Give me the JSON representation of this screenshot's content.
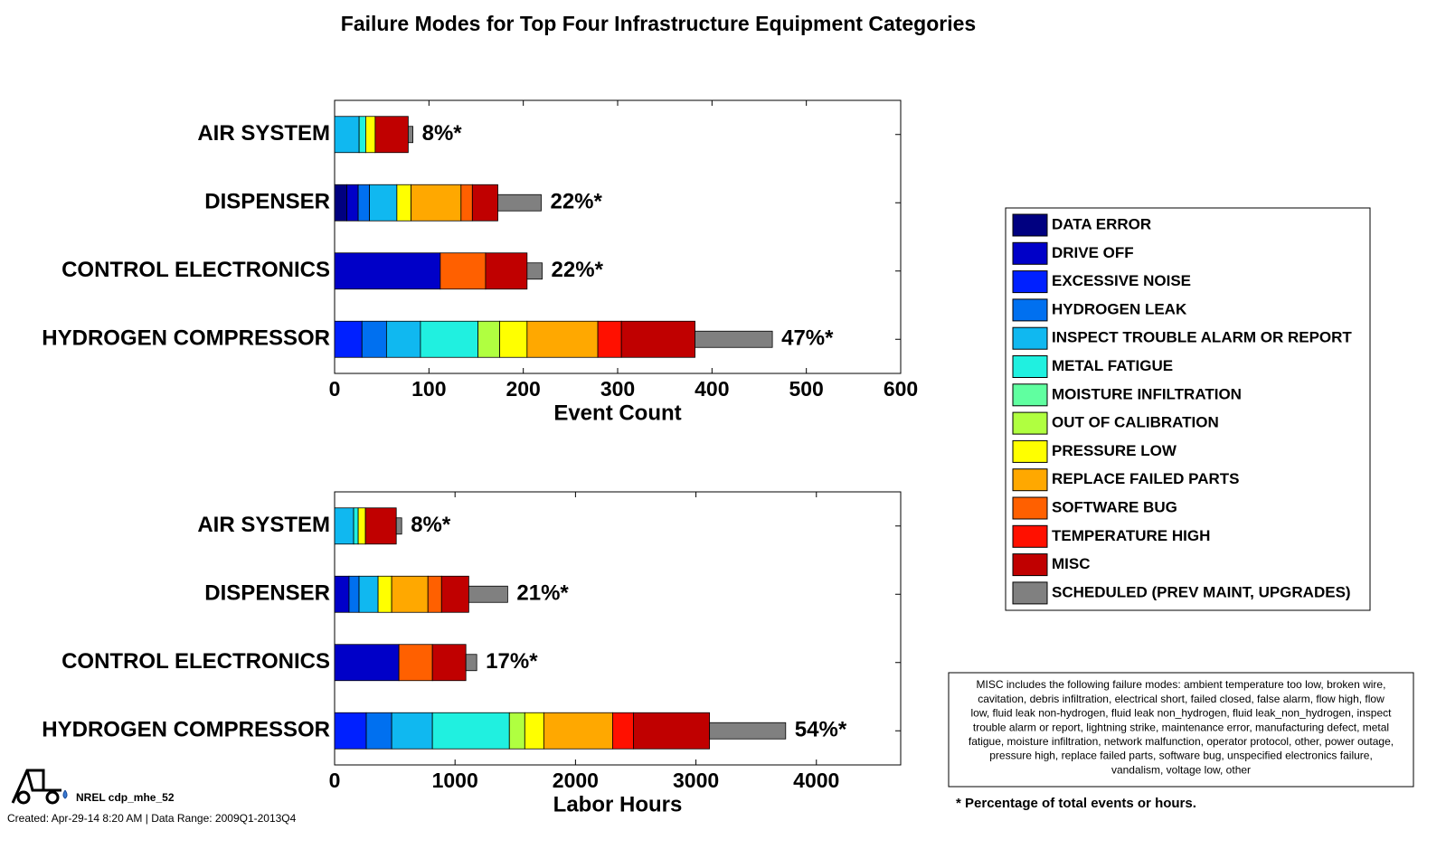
{
  "title": "Failure Modes for Top Four Infrastructure Equipment Categories",
  "legend": [
    {
      "name": "DATA ERROR",
      "color": "#000080"
    },
    {
      "name": "DRIVE OFF",
      "color": "#0000c8"
    },
    {
      "name": "EXCESSIVE NOISE",
      "color": "#0020ff"
    },
    {
      "name": "HYDROGEN LEAK",
      "color": "#0070f0"
    },
    {
      "name": "INSPECT TROUBLE ALARM OR REPORT",
      "color": "#10b8f0"
    },
    {
      "name": "METAL FATIGUE",
      "color": "#20f0e0"
    },
    {
      "name": "MOISTURE INFILTRATION",
      "color": "#60ffa0"
    },
    {
      "name": "OUT OF CALIBRATION",
      "color": "#b0ff40"
    },
    {
      "name": "PRESSURE LOW",
      "color": "#ffff00"
    },
    {
      "name": "REPLACE FAILED PARTS",
      "color": "#ffa800"
    },
    {
      "name": "SOFTWARE BUG",
      "color": "#ff6000"
    },
    {
      "name": "TEMPERATURE HIGH",
      "color": "#ff1000"
    },
    {
      "name": "MISC",
      "color": "#c00000"
    },
    {
      "name": "SCHEDULED (PREV MAINT, UPGRADES)",
      "color": "#808080"
    }
  ],
  "chart_data": [
    {
      "type": "bar",
      "orientation": "horizontal",
      "stacked": true,
      "categories": [
        "AIR SYSTEM",
        "DISPENSER",
        "CONTROL ELECTRONICS",
        "HYDROGEN COMPRESSOR"
      ],
      "series": [
        {
          "values": [
            0,
            13,
            0,
            0
          ]
        },
        {
          "values": [
            0,
            12,
            112,
            0
          ]
        },
        {
          "values": [
            0,
            0,
            0,
            29
          ]
        },
        {
          "values": [
            0,
            12,
            0,
            26
          ]
        },
        {
          "values": [
            26,
            29,
            0,
            36
          ]
        },
        {
          "values": [
            7,
            0,
            0,
            61
          ]
        },
        {
          "values": [
            0,
            0,
            0,
            0
          ]
        },
        {
          "values": [
            0,
            0,
            0,
            23
          ]
        },
        {
          "values": [
            10,
            15,
            0,
            29
          ]
        },
        {
          "values": [
            0,
            53,
            0,
            75
          ]
        },
        {
          "values": [
            0,
            12,
            48,
            0
          ]
        },
        {
          "values": [
            0,
            0,
            0,
            25
          ]
        },
        {
          "values": [
            35,
            27,
            44,
            78
          ]
        },
        {
          "values": [
            5,
            46,
            16,
            82
          ]
        }
      ],
      "percent_labels": [
        "8%*",
        "22%*",
        "22%*",
        "47%*"
      ],
      "xlabel": "Event Count",
      "xlim": [
        0,
        600
      ],
      "xticks": [
        0,
        100,
        200,
        300,
        400,
        500,
        600
      ]
    },
    {
      "type": "bar",
      "orientation": "horizontal",
      "stacked": true,
      "categories": [
        "AIR SYSTEM",
        "DISPENSER",
        "CONTROL ELECTRONICS",
        "HYDROGEN COMPRESSOR"
      ],
      "series": [
        {
          "values": [
            0,
            0,
            0,
            0
          ]
        },
        {
          "values": [
            0,
            120,
            534,
            0
          ]
        },
        {
          "values": [
            0,
            0,
            0,
            263
          ]
        },
        {
          "values": [
            0,
            83,
            0,
            211
          ]
        },
        {
          "values": [
            158,
            158,
            0,
            338
          ]
        },
        {
          "values": [
            38,
            0,
            0,
            639
          ]
        },
        {
          "values": [
            0,
            0,
            0,
            0
          ]
        },
        {
          "values": [
            0,
            0,
            0,
            128
          ]
        },
        {
          "values": [
            60,
            113,
            0,
            158
          ]
        },
        {
          "values": [
            0,
            301,
            0,
            571
          ]
        },
        {
          "values": [
            0,
            113,
            278,
            0
          ]
        },
        {
          "values": [
            0,
            0,
            0,
            173
          ]
        },
        {
          "values": [
            256,
            226,
            278,
            632
          ]
        },
        {
          "values": [
            45,
            323,
            90,
            632
          ]
        }
      ],
      "percent_labels": [
        "8%*",
        "21%*",
        "17%*",
        "54%*"
      ],
      "xlabel": "Labor Hours",
      "xlim": [
        0,
        4700
      ],
      "xticks": [
        0,
        1000,
        2000,
        3000,
        4000
      ]
    }
  ],
  "misc_note": [
    "MISC includes the following failure modes: ambient temperature too low, broken wire,",
    "cavitation, debris infiltration, electrical short, failed closed, false alarm, flow high, flow",
    "low, fluid leak non-hydrogen, fluid leak non_hydrogen, fluid leak_non_hydrogen, inspect",
    "trouble alarm or report, lightning strike, maintenance error, manufacturing defect, metal",
    "fatigue, moisture infiltration, network malfunction, operator protocol, other, power outage,",
    "pressure high, replace failed parts, software bug, unspecified electronics failure,",
    "vandalism, voltage low, other"
  ],
  "footnote": "* Percentage of total events or hours.",
  "logo_text": "NREL cdp_mhe_52",
  "created": "Created: Apr-29-14  8:20 AM | Data Range: 2009Q1-2013Q4"
}
